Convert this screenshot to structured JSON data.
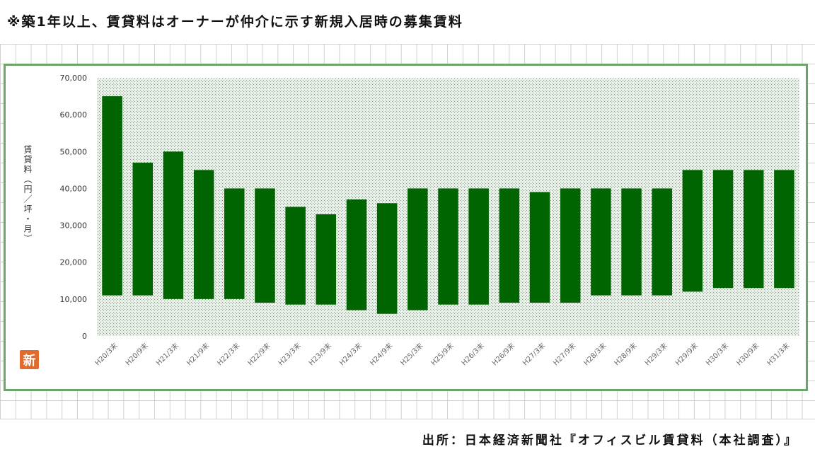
{
  "title": "※築1年以上、賃貸料はオーナーが仲介に示す新規入居時の募集賃料",
  "source": "出所：日本経済新聞社『オフィスビル賃貸料（本社調査）』",
  "logo_text": "新",
  "colors": {
    "bar": "#006400",
    "plot_bg": "#dcebdc",
    "frame": "#6aa56a"
  },
  "chart_data": {
    "type": "bar",
    "subtype": "floating-range",
    "ylabel": "賃貸料（円／坪・月）",
    "ylim": [
      0,
      70000
    ],
    "yticks": [
      "0",
      "10,000",
      "20,000",
      "30,000",
      "40,000",
      "50,000",
      "60,000",
      "70,000"
    ],
    "categories": [
      "H20/3末",
      "H20/9末",
      "H21/3末",
      "H21/9末",
      "H22/3末",
      "H22/9末",
      "H23/3末",
      "H23/9末",
      "H24/3末",
      "H24/9末",
      "H25/3末",
      "H25/9末",
      "H26/3末",
      "H26/9末",
      "H27/3末",
      "H27/9末",
      "H28/3末",
      "H28/9末",
      "H29/3末",
      "H29/9末",
      "H30/3末",
      "H30/9末",
      "H31/3末"
    ],
    "series": [
      {
        "low": [
          11000,
          11000,
          10000,
          10000,
          10000,
          9000,
          8500,
          8500,
          7000,
          6000,
          7000,
          8500,
          8500,
          9000,
          9000,
          9000,
          11000,
          11000,
          11000,
          12000,
          13000,
          13000,
          13000
        ],
        "high": [
          65000,
          47000,
          50000,
          45000,
          40000,
          40000,
          35000,
          33000,
          37000,
          36000,
          40000,
          40000,
          40000,
          40000,
          39000,
          40000,
          40000,
          40000,
          40000,
          45000,
          45000,
          45000,
          45000
        ]
      }
    ],
    "grid": false,
    "legend": "none"
  }
}
